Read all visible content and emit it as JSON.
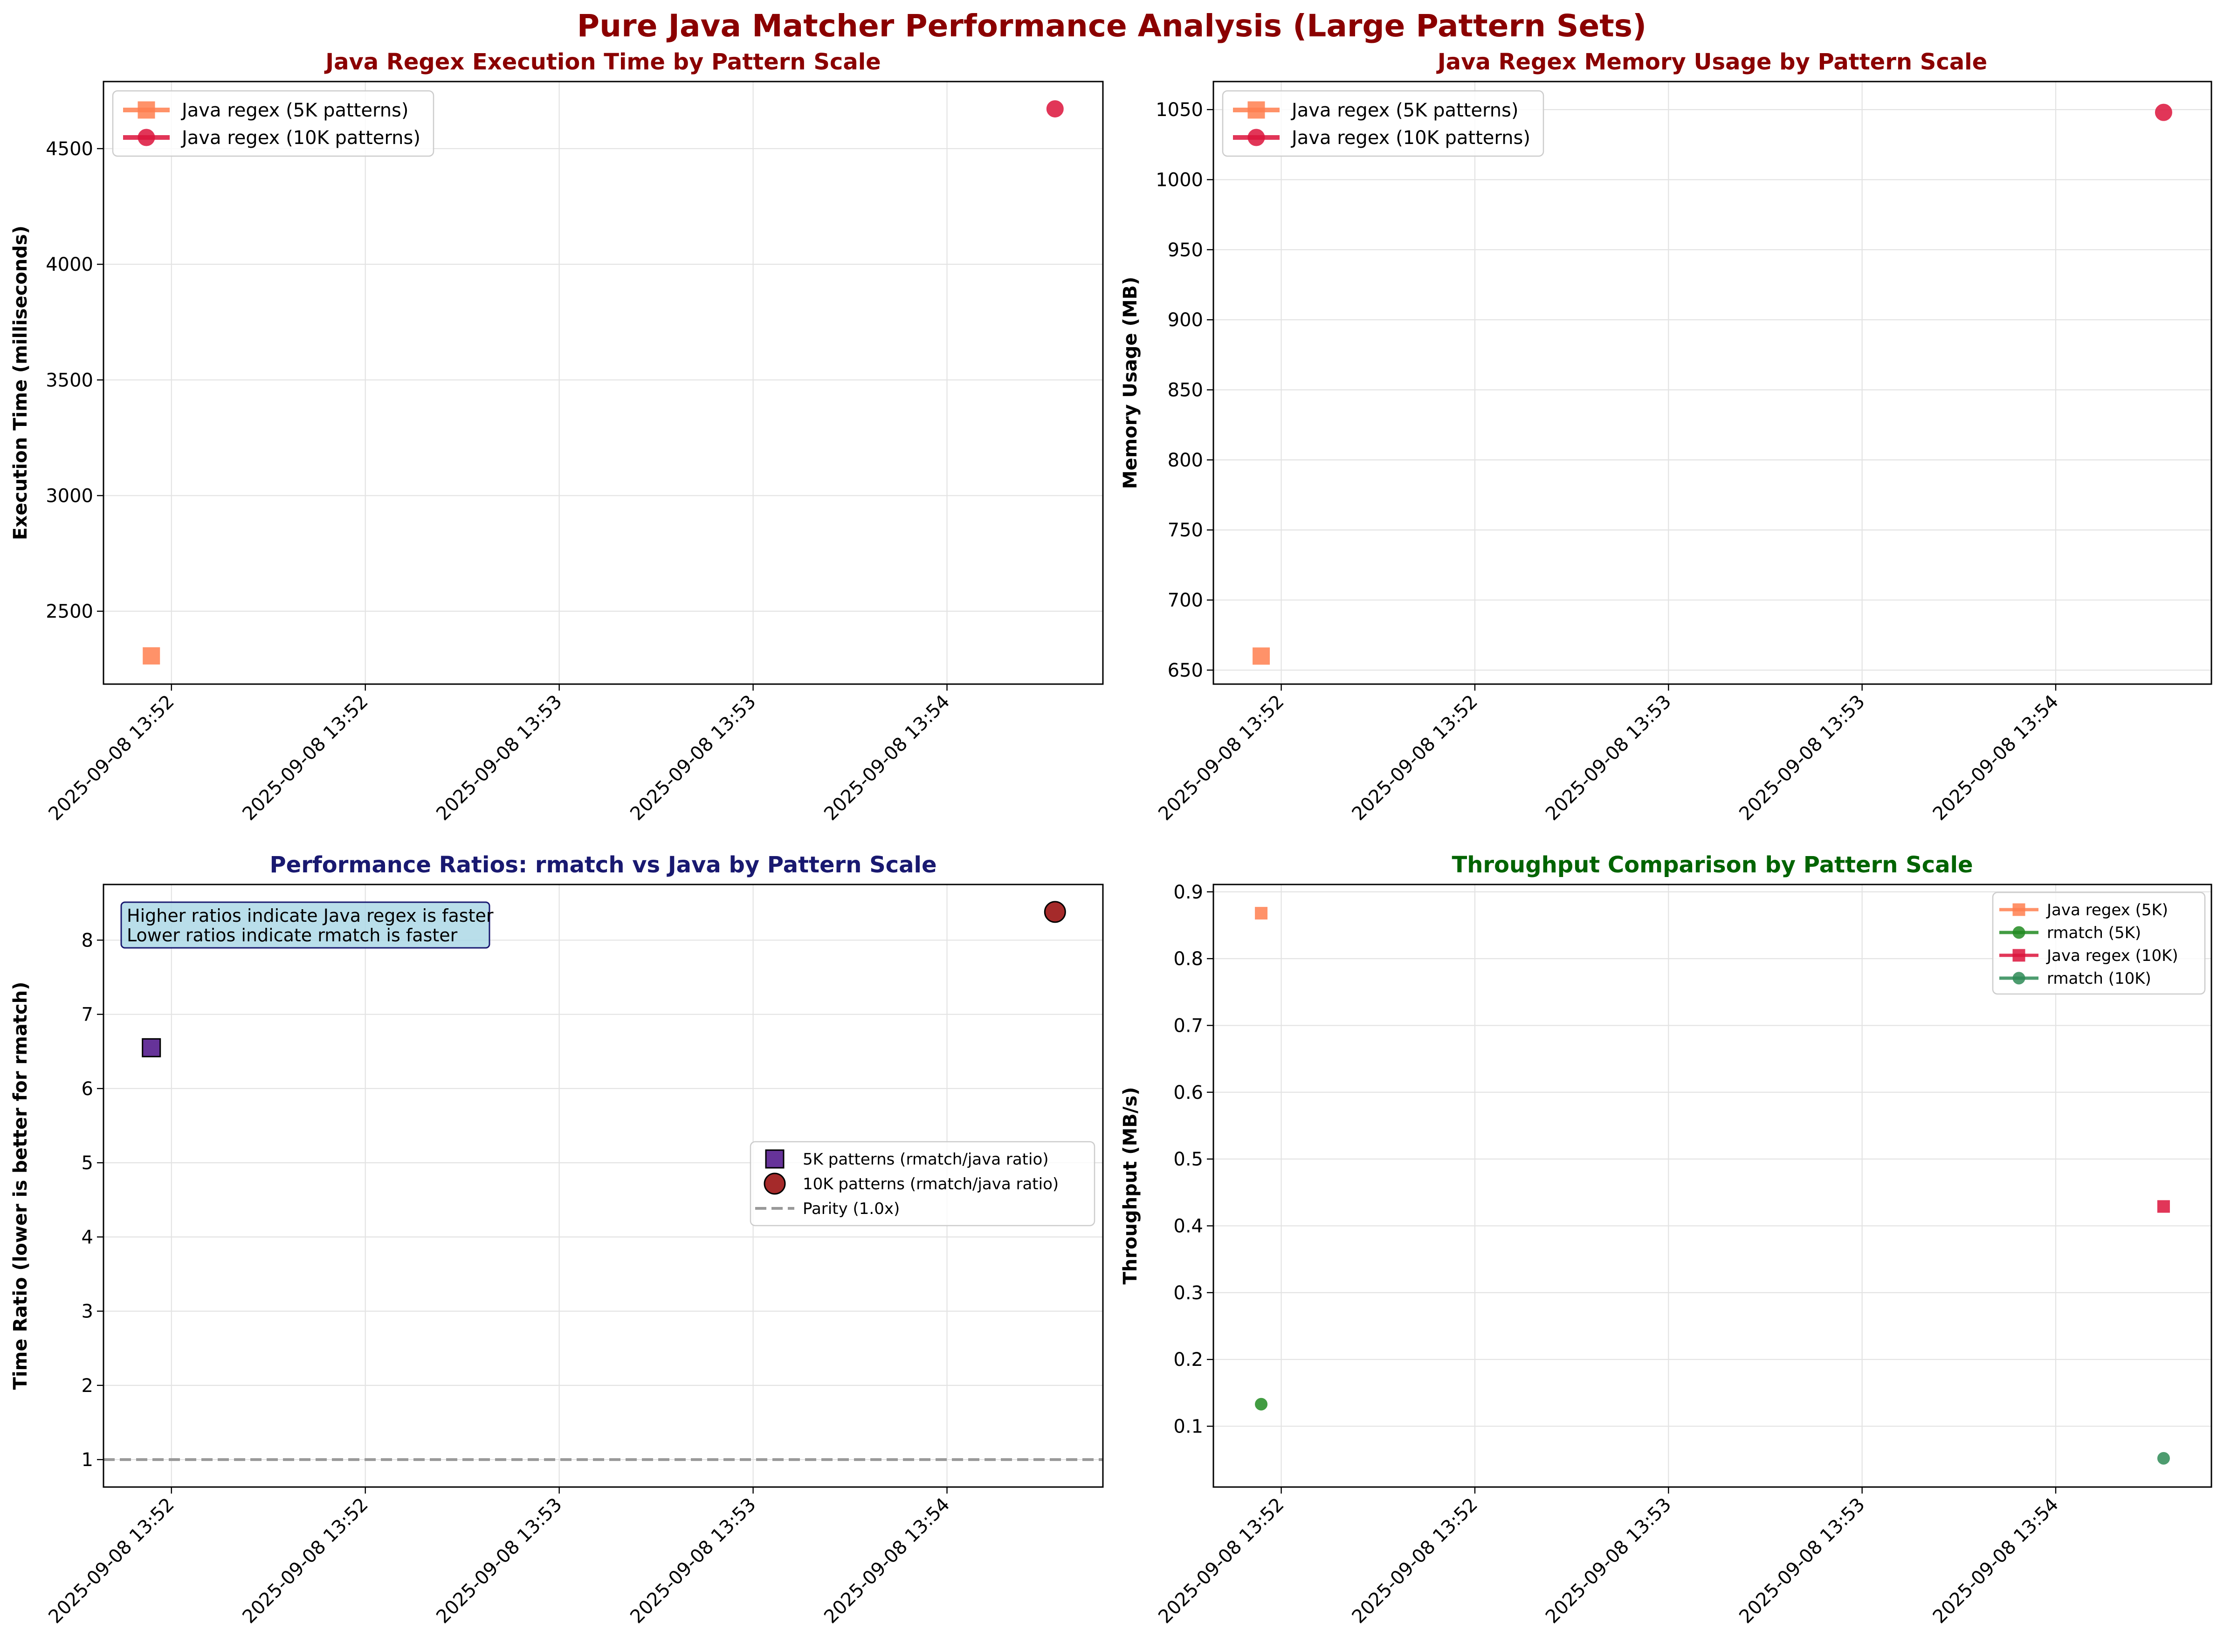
{
  "suptitle": "Pure Java Matcher Performance Analysis (Large Pattern Sets)",
  "colors": {
    "title_red": "#8b0000",
    "title_navy": "#191970",
    "title_green": "#006400",
    "java5k": "#ff7f50",
    "java10k": "#dc143c",
    "rmatch5k": "#228b22",
    "rmatch10k": "#2e8b57",
    "ratio5k": "#663399",
    "ratio10k": "#a52a2a",
    "parity": "#999999"
  },
  "chart_data": [
    {
      "id": "exec",
      "type": "line",
      "title": "Java Regex Execution Time by Pattern Scale",
      "title_color": "title_red",
      "xlabel": "",
      "ylabel": "Execution Time (milliseconds)",
      "ylim": [
        2185,
        4790
      ],
      "yticks": [
        2500,
        3000,
        3500,
        4000,
        4500
      ],
      "grid": true,
      "legend": "upper-left",
      "x_ticks": [
        "2025-09-08 13:52",
        "2025-09-08 13:52",
        "2025-09-08 13:53",
        "2025-09-08 13:53",
        "2025-09-08 13:54"
      ],
      "series": [
        {
          "name": "Java regex (5K patterns)",
          "color": "java5k",
          "marker": "square",
          "points": [
            {
              "x": "2025-09-08 13:51:51",
              "y": 2307
            }
          ]
        },
        {
          "name": "Java regex (10K patterns)",
          "color": "java10k",
          "marker": "circle",
          "points": [
            {
              "x": "2025-09-08 13:54:22",
              "y": 4672
            }
          ]
        }
      ]
    },
    {
      "id": "mem",
      "type": "line",
      "title": "Java Regex Memory Usage by Pattern Scale",
      "title_color": "title_red",
      "xlabel": "",
      "ylabel": "Memory Usage (MB)",
      "ylim": [
        640,
        1070
      ],
      "yticks": [
        650,
        700,
        750,
        800,
        850,
        900,
        950,
        1000,
        1050
      ],
      "grid": true,
      "legend": "upper-left",
      "x_ticks": [
        "2025-09-08 13:52",
        "2025-09-08 13:52",
        "2025-09-08 13:53",
        "2025-09-08 13:53",
        "2025-09-08 13:54"
      ],
      "series": [
        {
          "name": "Java regex (5K patterns)",
          "color": "java5k",
          "marker": "square",
          "points": [
            {
              "x": "2025-09-08 13:51:51",
              "y": 660
            }
          ]
        },
        {
          "name": "Java regex (10K patterns)",
          "color": "java10k",
          "marker": "circle",
          "points": [
            {
              "x": "2025-09-08 13:54:22",
              "y": 1048
            }
          ]
        }
      ]
    },
    {
      "id": "ratio",
      "type": "scatter",
      "title": "Performance Ratios: rmatch vs Java by Pattern Scale",
      "title_color": "title_navy",
      "xlabel": "",
      "ylabel": "Time Ratio (lower is better for rmatch)",
      "ylim": [
        0.63,
        8.75
      ],
      "yticks": [
        1,
        2,
        3,
        4,
        5,
        6,
        7,
        8
      ],
      "grid": true,
      "legend": "center-right",
      "annotation": [
        "Higher ratios indicate Java regex is faster",
        "Lower ratios indicate rmatch is faster"
      ],
      "x_ticks": [
        "2025-09-08 13:52",
        "2025-09-08 13:52",
        "2025-09-08 13:53",
        "2025-09-08 13:53",
        "2025-09-08 13:54"
      ],
      "series": [
        {
          "name": "5K patterns (rmatch/java ratio)",
          "color": "ratio5k",
          "marker": "square",
          "points": [
            {
              "x": "2025-09-08 13:51:51",
              "y": 6.55
            }
          ]
        },
        {
          "name": "10K patterns (rmatch/java ratio)",
          "color": "ratio10k",
          "marker": "circle",
          "points": [
            {
              "x": "2025-09-08 13:54:22",
              "y": 8.38
            }
          ]
        }
      ],
      "hlines": [
        {
          "name": "Parity (1.0x)",
          "y": 1.0,
          "color": "parity"
        }
      ]
    },
    {
      "id": "thru",
      "type": "scatter",
      "title": "Throughput Comparison by Pattern Scale",
      "title_color": "title_green",
      "xlabel": "",
      "ylabel": "Throughput (MB/s)",
      "ylim": [
        0.009,
        0.911
      ],
      "yticks": [
        0.1,
        0.2,
        0.3,
        0.4,
        0.5,
        0.6,
        0.7,
        0.8,
        0.9
      ],
      "grid": true,
      "legend": "upper-right",
      "x_ticks": [
        "2025-09-08 13:52",
        "2025-09-08 13:52",
        "2025-09-08 13:53",
        "2025-09-08 13:53",
        "2025-09-08 13:54"
      ],
      "series": [
        {
          "name": "Java regex (5K)",
          "color": "java5k",
          "marker": "square",
          "points": [
            {
              "x": "2025-09-08 13:51:51",
              "y": 0.868
            }
          ]
        },
        {
          "name": "rmatch (5K)",
          "color": "rmatch5k",
          "marker": "circle",
          "points": [
            {
              "x": "2025-09-08 13:51:51",
              "y": 0.133
            }
          ]
        },
        {
          "name": "Java regex (10K)",
          "color": "java10k",
          "marker": "square",
          "points": [
            {
              "x": "2025-09-08 13:54:22",
              "y": 0.429
            }
          ]
        },
        {
          "name": "rmatch (10K)",
          "color": "rmatch10k",
          "marker": "circle",
          "points": [
            {
              "x": "2025-09-08 13:54:22",
              "y": 0.052
            }
          ]
        }
      ]
    }
  ]
}
